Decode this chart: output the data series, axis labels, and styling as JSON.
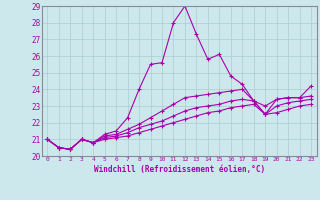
{
  "title": "",
  "xlabel": "Windchill (Refroidissement éolien,°C)",
  "ylabel": "",
  "bg_color": "#cce8ec",
  "grid_color": "#aacccc",
  "line_color": "#aa00aa",
  "xlim": [
    -0.5,
    23.5
  ],
  "ylim": [
    20,
    29
  ],
  "xticks": [
    0,
    1,
    2,
    3,
    4,
    5,
    6,
    7,
    8,
    9,
    10,
    11,
    12,
    13,
    14,
    15,
    16,
    17,
    18,
    19,
    20,
    21,
    22,
    23
  ],
  "yticks": [
    20,
    21,
    22,
    23,
    24,
    25,
    26,
    27,
    28,
    29
  ],
  "series": [
    [
      21.0,
      20.5,
      20.4,
      21.0,
      20.8,
      21.3,
      21.5,
      22.3,
      24.0,
      25.5,
      25.6,
      28.0,
      29.0,
      27.3,
      25.8,
      26.1,
      24.8,
      24.3,
      23.3,
      22.5,
      23.4,
      23.5,
      23.5,
      24.2
    ],
    [
      21.0,
      20.5,
      20.4,
      21.0,
      20.8,
      21.2,
      21.3,
      21.6,
      21.9,
      22.3,
      22.7,
      23.1,
      23.5,
      23.6,
      23.7,
      23.8,
      23.9,
      24.0,
      23.3,
      23.0,
      23.4,
      23.5,
      23.5,
      23.6
    ],
    [
      21.0,
      20.5,
      20.4,
      21.0,
      20.8,
      21.1,
      21.2,
      21.4,
      21.7,
      21.9,
      22.1,
      22.4,
      22.7,
      22.9,
      23.0,
      23.1,
      23.3,
      23.4,
      23.3,
      22.5,
      23.0,
      23.2,
      23.3,
      23.4
    ],
    [
      21.0,
      20.5,
      20.4,
      21.0,
      20.8,
      21.0,
      21.1,
      21.2,
      21.4,
      21.6,
      21.8,
      22.0,
      22.2,
      22.4,
      22.6,
      22.7,
      22.9,
      23.0,
      23.1,
      22.5,
      22.6,
      22.8,
      23.0,
      23.1
    ]
  ]
}
